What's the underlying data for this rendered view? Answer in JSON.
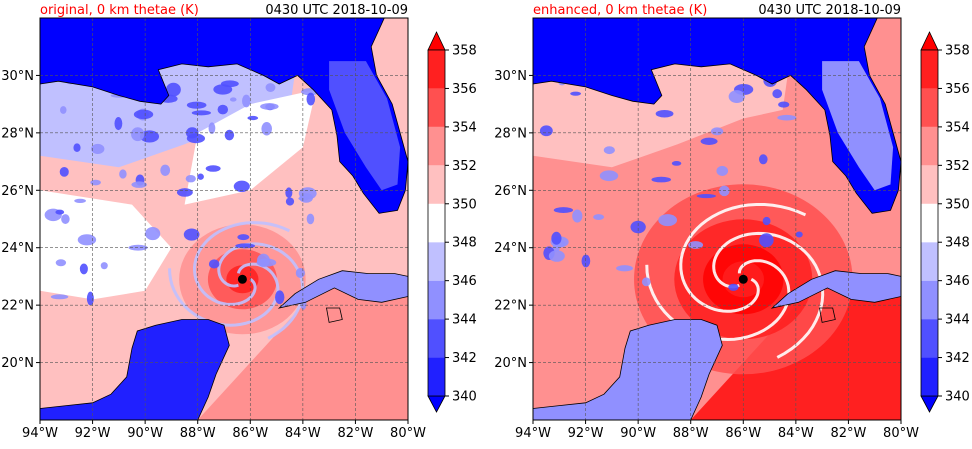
{
  "colors": {
    "title_red": "#ff0000",
    "text": "#000000",
    "levels": [
      "#0000ff",
      "#2020ff",
      "#5050ff",
      "#9090ff",
      "#c0c0ff",
      "#ffffff",
      "#ffc0c0",
      "#ff9090",
      "#ff5050",
      "#ff2020",
      "#ff0000"
    ]
  },
  "chart_data": [
    {
      "type": "heatmap",
      "title_left": "original, 0 km thetae (K)",
      "title_right": "0430 UTC 2018-10-09",
      "xlim": [
        -94,
        -80
      ],
      "ylim": [
        18,
        32
      ],
      "x_tick_labels": [
        "94°W",
        "92°W",
        "90°W",
        "88°W",
        "86°W",
        "84°W",
        "82°W",
        "80°W"
      ],
      "y_tick_labels": [
        "20°N",
        "22°N",
        "24°N",
        "26°N",
        "28°N",
        "30°N"
      ],
      "grid": true,
      "storm_center": {
        "lon": -86.3,
        "lat": 22.9
      },
      "variant": "original"
    },
    {
      "type": "heatmap",
      "title_left": "enhanced, 0 km thetae (K)",
      "title_right": "0430 UTC 2018-10-09",
      "xlim": [
        -94,
        -80
      ],
      "ylim": [
        18,
        32
      ],
      "x_tick_labels": [
        "94°W",
        "92°W",
        "90°W",
        "88°W",
        "86°W",
        "84°W",
        "82°W",
        "80°W"
      ],
      "y_tick_labels": [
        "20°N",
        "22°N",
        "24°N",
        "26°N",
        "28°N",
        "30°N"
      ],
      "grid": true,
      "storm_center": {
        "lon": -86.0,
        "lat": 22.9
      },
      "variant": "enhanced"
    }
  ],
  "colorbar": {
    "levels": [
      340,
      342,
      344,
      346,
      348,
      350,
      352,
      354,
      356,
      358
    ],
    "labels": [
      "340",
      "342",
      "344",
      "346",
      "348",
      "350",
      "352",
      "354",
      "356",
      "358"
    ],
    "extend": "both"
  }
}
